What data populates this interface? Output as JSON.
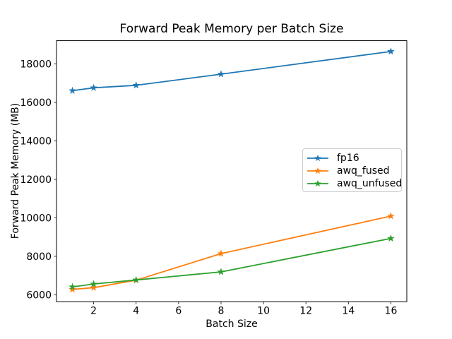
{
  "figure": {
    "background": "#ffffff",
    "spine_color": "#000000",
    "legend_border_color": "#cccccc"
  },
  "chart_data": {
    "type": "line",
    "title": "Forward Peak Memory per Batch Size",
    "xlabel": "Batch Size",
    "ylabel": "Forward Peak Memory (MB)",
    "x": [
      1,
      2,
      4,
      8,
      16
    ],
    "series": [
      {
        "name": "fp16",
        "color": "#1f77b4",
        "marker": "star",
        "values": [
          16610,
          16760,
          16890,
          17470,
          18650
        ]
      },
      {
        "name": "awq_fused",
        "color": "#ff7f0e",
        "marker": "star",
        "values": [
          6280,
          6370,
          6760,
          8140,
          10090
        ]
      },
      {
        "name": "awq_unfused",
        "color": "#2ca02c",
        "marker": "star",
        "values": [
          6410,
          6560,
          6770,
          7190,
          8930
        ]
      }
    ],
    "xticks": [
      2,
      4,
      6,
      8,
      10,
      12,
      14,
      16
    ],
    "yticks": [
      6000,
      8000,
      10000,
      12000,
      14000,
      16000,
      18000
    ],
    "xlim": [
      0.25,
      16.75
    ],
    "ylim": [
      5640,
      19210
    ],
    "grid": false,
    "legend_position": "center right",
    "legend_labels": [
      "fp16",
      "awq_fused",
      "awq_unfused"
    ]
  }
}
